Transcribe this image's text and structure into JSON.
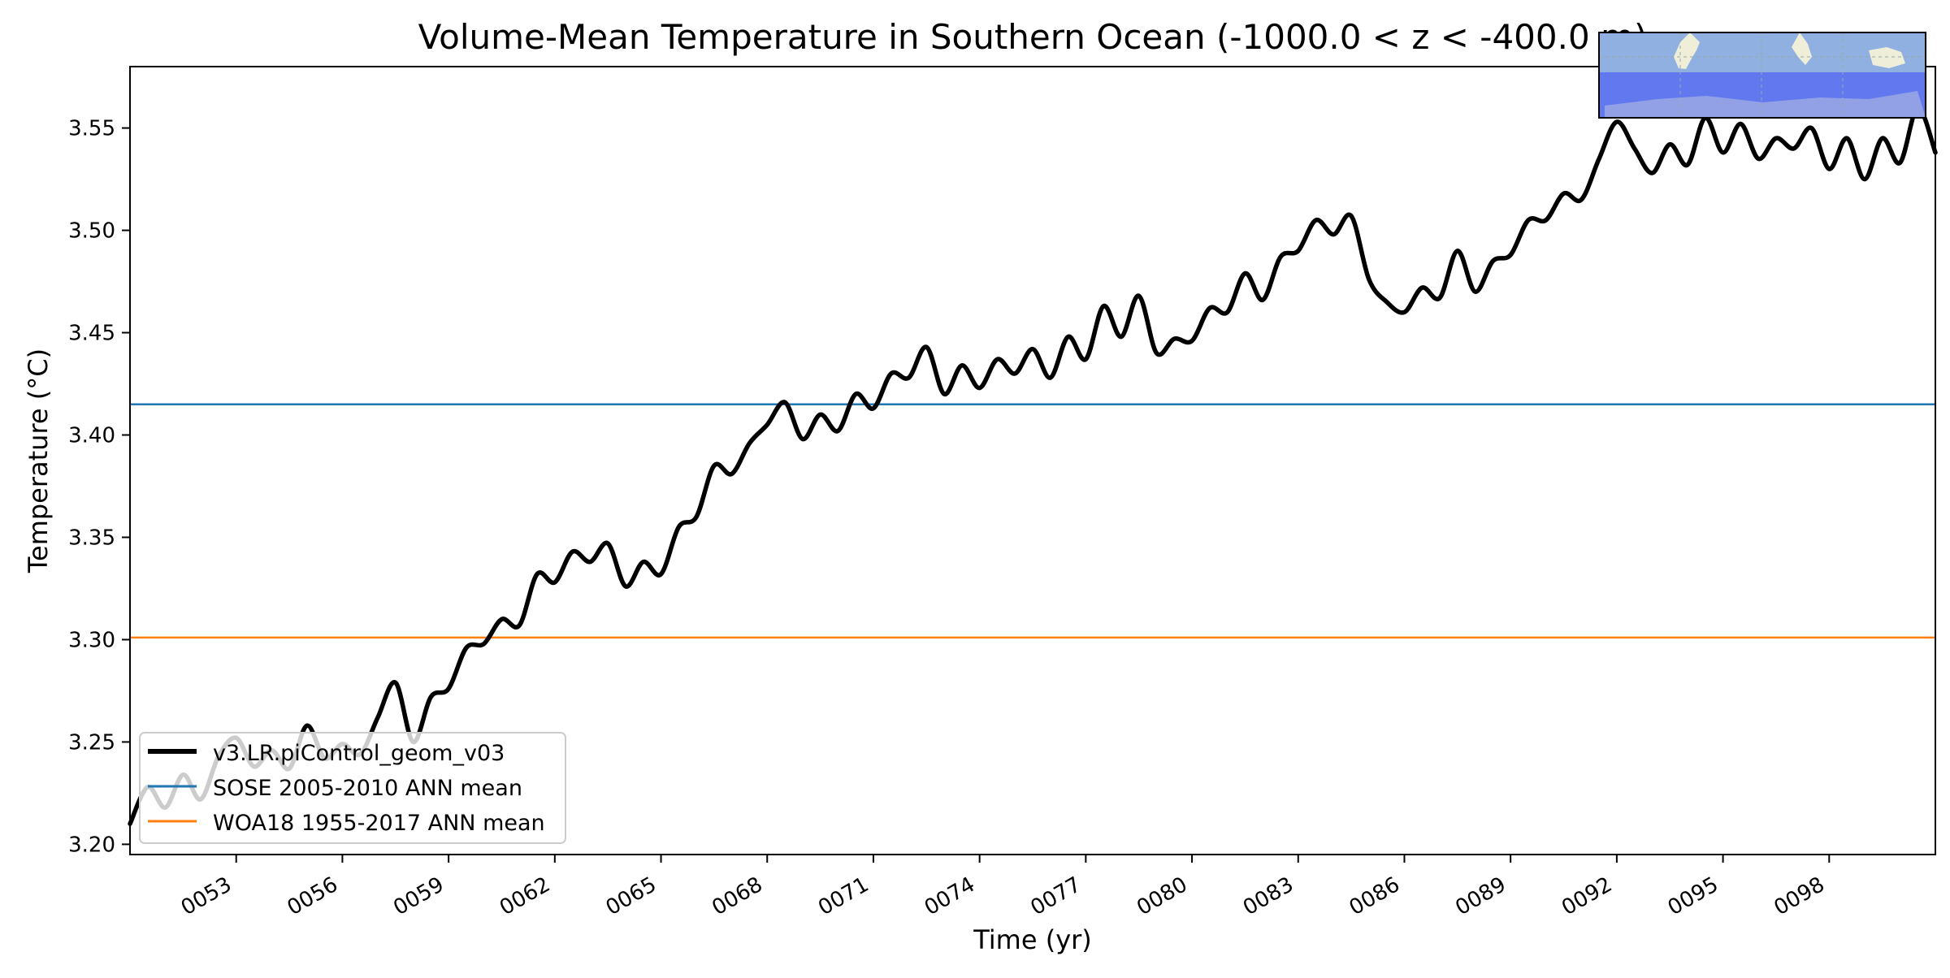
{
  "chart_data": {
    "type": "line",
    "title": "Volume-Mean Temperature in Southern Ocean (-1000.0 < z < -400.0 m)",
    "xlabel": "Time (yr)",
    "ylabel": "Temperature (°C)",
    "xlim": [
      50.0,
      101.0
    ],
    "ylim": [
      3.195,
      3.58
    ],
    "x_ticks": [
      53,
      56,
      59,
      62,
      65,
      68,
      71,
      74,
      77,
      80,
      83,
      86,
      89,
      92,
      95,
      98
    ],
    "x_tick_labels": [
      "0053",
      "0056",
      "0059",
      "0062",
      "0065",
      "0068",
      "0071",
      "0074",
      "0077",
      "0080",
      "0083",
      "0086",
      "0089",
      "0092",
      "0095",
      "0098"
    ],
    "y_ticks": [
      3.2,
      3.25,
      3.3,
      3.35,
      3.4,
      3.45,
      3.5,
      3.55
    ],
    "y_tick_labels": [
      "3.20",
      "3.25",
      "3.30",
      "3.35",
      "3.40",
      "3.45",
      "3.50",
      "3.55"
    ],
    "grid": false,
    "legend_position": "lower-left",
    "series": [
      {
        "name": "v3.LR.piControl_geom_v03",
        "color": "#000000",
        "x": [
          50.0,
          50.5,
          51.0,
          51.5,
          52.0,
          52.5,
          53.0,
          53.5,
          54.0,
          54.5,
          55.0,
          55.5,
          56.0,
          56.5,
          57.0,
          57.5,
          58.0,
          58.5,
          59.0,
          59.5,
          60.0,
          60.5,
          61.0,
          61.5,
          62.0,
          62.5,
          63.0,
          63.5,
          64.0,
          64.5,
          65.0,
          65.5,
          66.0,
          66.5,
          67.0,
          67.5,
          68.0,
          68.5,
          69.0,
          69.5,
          70.0,
          70.5,
          71.0,
          71.5,
          72.0,
          72.5,
          73.0,
          73.5,
          74.0,
          74.5,
          75.0,
          75.5,
          76.0,
          76.5,
          77.0,
          77.5,
          78.0,
          78.5,
          79.0,
          79.5,
          80.0,
          80.5,
          81.0,
          81.5,
          82.0,
          82.5,
          83.0,
          83.5,
          84.0,
          84.5,
          85.0,
          85.5,
          86.0,
          86.5,
          87.0,
          87.5,
          88.0,
          88.5,
          89.0,
          89.5,
          90.0,
          90.5,
          91.0,
          91.5,
          92.0,
          92.5,
          93.0,
          93.5,
          94.0,
          94.5,
          95.0,
          95.5,
          96.0,
          96.5,
          97.0,
          97.5,
          98.0,
          98.5,
          99.0,
          99.5,
          100.0,
          100.5,
          101.0
        ],
        "values": [
          3.21,
          3.228,
          3.218,
          3.234,
          3.222,
          3.243,
          3.252,
          3.238,
          3.246,
          3.237,
          3.258,
          3.242,
          3.249,
          3.244,
          3.262,
          3.279,
          3.25,
          3.272,
          3.276,
          3.296,
          3.298,
          3.31,
          3.307,
          3.332,
          3.328,
          3.343,
          3.338,
          3.347,
          3.326,
          3.338,
          3.332,
          3.355,
          3.36,
          3.385,
          3.381,
          3.396,
          3.405,
          3.416,
          3.398,
          3.41,
          3.402,
          3.42,
          3.413,
          3.43,
          3.428,
          3.443,
          3.42,
          3.434,
          3.423,
          3.437,
          3.43,
          3.442,
          3.428,
          3.448,
          3.437,
          3.463,
          3.448,
          3.468,
          3.44,
          3.447,
          3.446,
          3.462,
          3.46,
          3.479,
          3.466,
          3.487,
          3.49,
          3.505,
          3.498,
          3.507,
          3.476,
          3.465,
          3.46,
          3.472,
          3.467,
          3.49,
          3.47,
          3.485,
          3.488,
          3.505,
          3.505,
          3.518,
          3.515,
          3.535,
          3.553,
          3.54,
          3.528,
          3.542,
          3.532,
          3.555,
          3.538,
          3.552,
          3.535,
          3.545,
          3.54,
          3.55,
          3.53,
          3.545,
          3.525,
          3.545,
          3.533,
          3.56,
          3.538
        ]
      },
      {
        "name": "SOSE 2005-2010 ANN mean",
        "color": "#1f77b4",
        "value": 3.415
      },
      {
        "name": "WOA18 1955-2017 ANN mean",
        "color": "#ff7f0e",
        "value": 3.301
      }
    ],
    "inset_map": {
      "ocean_color": "#8fb0e0",
      "region_color": "#5a6ef0",
      "land_color": "#efeed8"
    }
  }
}
